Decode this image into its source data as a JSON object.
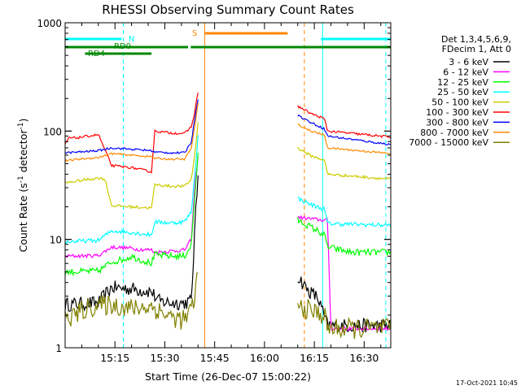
{
  "chart_data": {
    "type": "line",
    "title": "RHESSI Observing Summary Count Rates",
    "xlabel": "Start Time (26-Dec-07 15:00:22)",
    "ylabel_main": "Count Rate (s",
    "ylabel_sup1": "-1",
    "ylabel_mid": " detector",
    "ylabel_sup2": "-1",
    "ylabel_end": ")",
    "y_scale": "log",
    "ylim": [
      1,
      1000
    ],
    "xlim_minutes": [
      0,
      98
    ],
    "x_ticks": [
      {
        "m": 15,
        "label": "15:15"
      },
      {
        "m": 30,
        "label": "15:30"
      },
      {
        "m": 45,
        "label": "15:45"
      },
      {
        "m": 60,
        "label": "16:00"
      },
      {
        "m": 75,
        "label": "16:15"
      },
      {
        "m": 90,
        "label": "16:30"
      }
    ],
    "y_ticks": [
      {
        "v": 1,
        "label": "1"
      },
      {
        "v": 10,
        "label": "10"
      },
      {
        "v": 100,
        "label": "100"
      },
      {
        "v": 1000,
        "label": "1000"
      }
    ],
    "legend_header": [
      "Det 1,3,4,5,6,9,",
      "FDecim 1, Att 0"
    ],
    "legend_position": "right",
    "gap_minutes": [
      40,
      70
    ],
    "series": [
      {
        "name": "3 - 6 keV",
        "color": "#000000",
        "noise": 0.15,
        "segments": [
          {
            "x": [
              0,
              10,
              14,
              20,
              26,
              28,
              32,
              36,
              38,
              39,
              40
            ],
            "y": [
              2.5,
              2.6,
              3.6,
              3.5,
              3.3,
              2.7,
              2.6,
              2.6,
              2.7,
              12,
              40
            ]
          },
          {
            "x": [
              70,
              73,
              76,
              79,
              98
            ],
            "y": [
              4.6,
              3.4,
              2.9,
              1.6,
              1.6
            ]
          }
        ]
      },
      {
        "name": "6 - 12 keV",
        "color": "#ff00ff",
        "noise": 0.04,
        "segments": [
          {
            "x": [
              0,
              10,
              14,
              20,
              22,
              26,
              27,
              32,
              36,
              38,
              39,
              40
            ],
            "y": [
              7,
              7.1,
              8.5,
              8.3,
              8.1,
              8.0,
              7.6,
              7.8,
              8.0,
              10,
              30,
              60
            ]
          },
          {
            "x": [
              70,
              74,
              78,
              79,
              80,
              98
            ],
            "y": [
              16,
              15.5,
              15,
              15,
              1.5,
              1.5
            ]
          }
        ]
      },
      {
        "name": "12 - 25 keV",
        "color": "#00ff00",
        "noise": 0.07,
        "segments": [
          {
            "x": [
              0,
              10,
              14,
              18,
              20,
              22,
              26,
              27,
              32,
              36,
              38,
              39,
              40
            ],
            "y": [
              5,
              5.1,
              6.2,
              6.6,
              7,
              6.6,
              6,
              7.2,
              7.0,
              7.0,
              9,
              25,
              60
            ]
          },
          {
            "x": [
              70,
              74,
              78,
              79,
              86,
              98
            ],
            "y": [
              15,
              13,
              11,
              8.5,
              7.6,
              7.6
            ]
          }
        ]
      },
      {
        "name": "25 - 50 keV",
        "color": "#00ffff",
        "noise": 0.045,
        "segments": [
          {
            "x": [
              0,
              10,
              14,
              20,
              26,
              27,
              32,
              36,
              38,
              39,
              40
            ],
            "y": [
              9.5,
              9.8,
              12,
              11.6,
              11.0,
              14.5,
              14.2,
              14.6,
              18,
              40,
              90
            ]
          },
          {
            "x": [
              70,
              74,
              78,
              79,
              98
            ],
            "y": [
              24,
              21,
              19,
              14,
              13.5
            ]
          }
        ]
      },
      {
        "name": "50 - 100 keV",
        "color": "#cccc00",
        "noise": 0.03,
        "segments": [
          {
            "x": [
              0,
              2,
              10,
              12,
              14,
              20,
              26,
              27,
              32,
              36,
              38,
              39,
              40
            ],
            "y": [
              33,
              34,
              37,
              36,
              20.5,
              20,
              19.5,
              32,
              31,
              31,
              36,
              60,
              120
            ]
          },
          {
            "x": [
              70,
              74,
              78,
              79,
              98
            ],
            "y": [
              70,
              59,
              54,
              40,
              36
            ]
          }
        ]
      },
      {
        "name": "100 - 300 keV",
        "color": "#ff0000",
        "noise": 0.025,
        "segments": [
          {
            "x": [
              0,
              1,
              4,
              10,
              14,
              20,
              26,
              27,
              32,
              36,
              38,
              39,
              40
            ],
            "y": [
              75,
              86,
              87,
              93,
              48,
              46,
              42,
              100,
              96,
              95,
              110,
              150,
              230
            ]
          },
          {
            "x": [
              70,
              74,
              78,
              79,
              98
            ],
            "y": [
              170,
              145,
              130,
              100,
              88
            ]
          }
        ]
      },
      {
        "name": "300 - 800 keV",
        "color": "#0000ff",
        "noise": 0.022,
        "segments": [
          {
            "x": [
              0,
              4,
              10,
              14,
              20,
              26,
              27,
              32,
              36,
              38,
              39,
              40
            ],
            "y": [
              63,
              64,
              66,
              70,
              68,
              66,
              64,
              63,
              63,
              80,
              130,
              200
            ]
          },
          {
            "x": [
              70,
              74,
              78,
              79,
              98
            ],
            "y": [
              140,
              120,
              105,
              90,
              75
            ]
          }
        ]
      },
      {
        "name": "800 - 7000 keV",
        "color": "#ff8800",
        "noise": 0.02,
        "segments": [
          {
            "x": [
              0,
              4,
              10,
              14,
              20,
              26,
              27,
              32,
              36,
              38,
              39,
              40
            ],
            "y": [
              53,
              55,
              57,
              62,
              60,
              58,
              56,
              55,
              55,
              70,
              110,
              180
            ]
          },
          {
            "x": [
              70,
              74,
              78,
              79,
              98
            ],
            "y": [
              115,
              100,
              92,
              70,
              62
            ]
          }
        ]
      },
      {
        "name": "7000 - 15000 keV",
        "color": "#808000",
        "noise": 0.22,
        "segments": [
          {
            "x": [
              0,
              4,
              8,
              14,
              20,
              26,
              32,
              36,
              38,
              39,
              40
            ],
            "y": [
              1.8,
              2.1,
              2.4,
              2.5,
              2.3,
              2.4,
              1.9,
              1.8,
              2.2,
              3,
              5
            ]
          },
          {
            "x": [
              70,
              74,
              78,
              79,
              98
            ],
            "y": [
              2.4,
              2.2,
              2.0,
              1.5,
              1.5
            ]
          }
        ]
      }
    ],
    "flags": [
      {
        "label": "N",
        "color": "#00ffff",
        "segments": [
          [
            0,
            17
          ],
          [
            77,
            98
          ]
        ]
      },
      {
        "label": "S",
        "color": "#ff8800",
        "segments": [
          [
            42,
            67
          ]
        ]
      },
      {
        "label": "RD0",
        "color": "#008800",
        "segments": [
          [
            0,
            37
          ],
          [
            37.8,
            98
          ]
        ]
      },
      {
        "label": "RD4",
        "color": "#008800",
        "segments": [
          [
            6,
            26
          ]
        ]
      }
    ],
    "markers": [
      {
        "m": 17.5,
        "color": "#00ffff",
        "style": "dashed"
      },
      {
        "m": 77.5,
        "color": "#00ffff",
        "style": "solid"
      },
      {
        "m": 96.5,
        "color": "#00ffff",
        "style": "dashed"
      },
      {
        "m": 42,
        "color": "#ff8800",
        "style": "solid"
      },
      {
        "m": 72,
        "color": "#ff8800",
        "style": "dashed"
      }
    ],
    "timestamp": "17-Oct-2021 10:45"
  }
}
